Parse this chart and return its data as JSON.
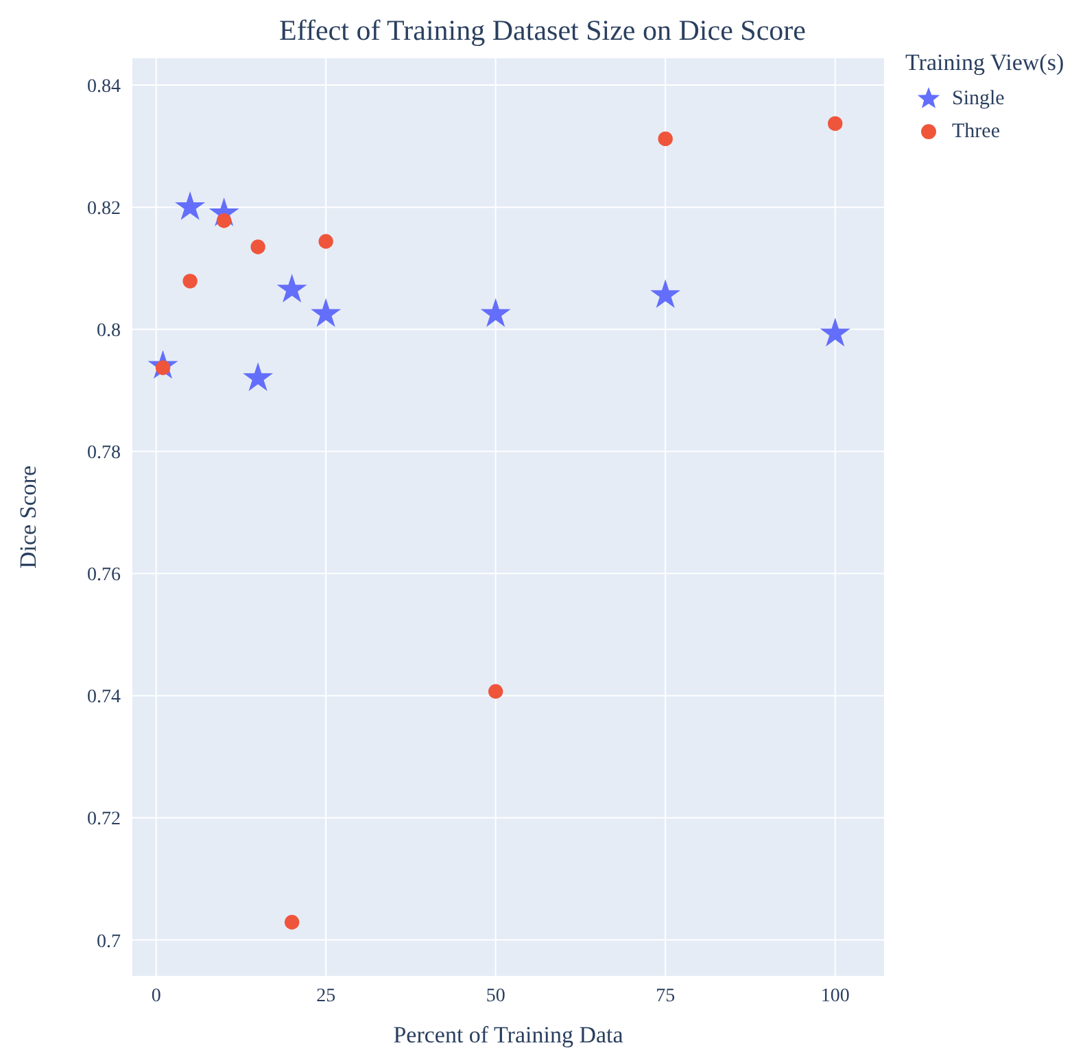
{
  "chart_data": {
    "type": "scatter",
    "title": "Effect of Training Dataset Size on Dice Score",
    "xlabel": "Percent of Training Data",
    "ylabel": "Dice Score",
    "legend_title": "Training View(s)",
    "legend": "top right",
    "grid": true,
    "xlim": [
      -3.6,
      107.3
    ],
    "xticks": [
      0,
      25,
      50,
      75,
      100
    ],
    "ylim": [
      0.694,
      0.8445
    ],
    "yticks": [
      0.7,
      0.72,
      0.74,
      0.76,
      0.78,
      0.8,
      0.82,
      0.84
    ],
    "series": [
      {
        "name": "Single",
        "color": "#636efa",
        "marker": "star",
        "x": [
          1,
          5,
          10,
          15,
          20,
          25,
          50,
          75,
          100
        ],
        "values": [
          0.794,
          0.82,
          0.819,
          0.792,
          0.8065,
          0.8025,
          0.8025,
          0.8056,
          0.7993
        ]
      },
      {
        "name": "Three",
        "color": "#ef553b",
        "marker": "circle",
        "x": [
          1,
          5,
          10,
          15,
          20,
          25,
          50,
          75,
          100
        ],
        "values": [
          0.7937,
          0.8079,
          0.8178,
          0.8135,
          0.7029,
          0.8144,
          0.7407,
          0.8312,
          0.8337
        ]
      }
    ]
  }
}
